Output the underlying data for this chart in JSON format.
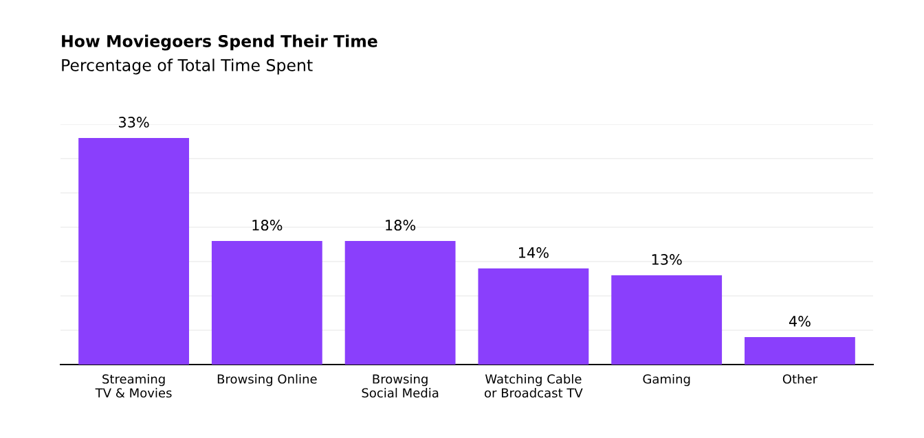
{
  "chart_data": {
    "type": "bar",
    "title": "How Moviegoers Spend Their Time",
    "subtitle": "Percentage of Total Time Spent",
    "categories": [
      "Streaming\nTV & Movies",
      "Browsing Online",
      "Browsing\nSocial Media",
      "Watching Cable\nor Broadcast TV",
      "Gaming",
      "Other"
    ],
    "values": [
      33,
      18,
      18,
      14,
      13,
      4
    ],
    "value_labels": [
      "33%",
      "18%",
      "18%",
      "14%",
      "13%",
      "4%"
    ],
    "color": "#8a3ffc",
    "ylim": [
      0,
      35
    ],
    "yticks": [
      {
        "value": 0,
        "label": null
      },
      {
        "value": 5,
        "label": null
      },
      {
        "value": 10,
        "label": null
      },
      {
        "value": 15,
        "label": null
      },
      {
        "value": 20,
        "label": null
      },
      {
        "value": 25,
        "label": null
      },
      {
        "value": 30,
        "label": null
      },
      {
        "value": 35,
        "label": null
      }
    ],
    "grid": "y",
    "tick_labels": "x"
  }
}
